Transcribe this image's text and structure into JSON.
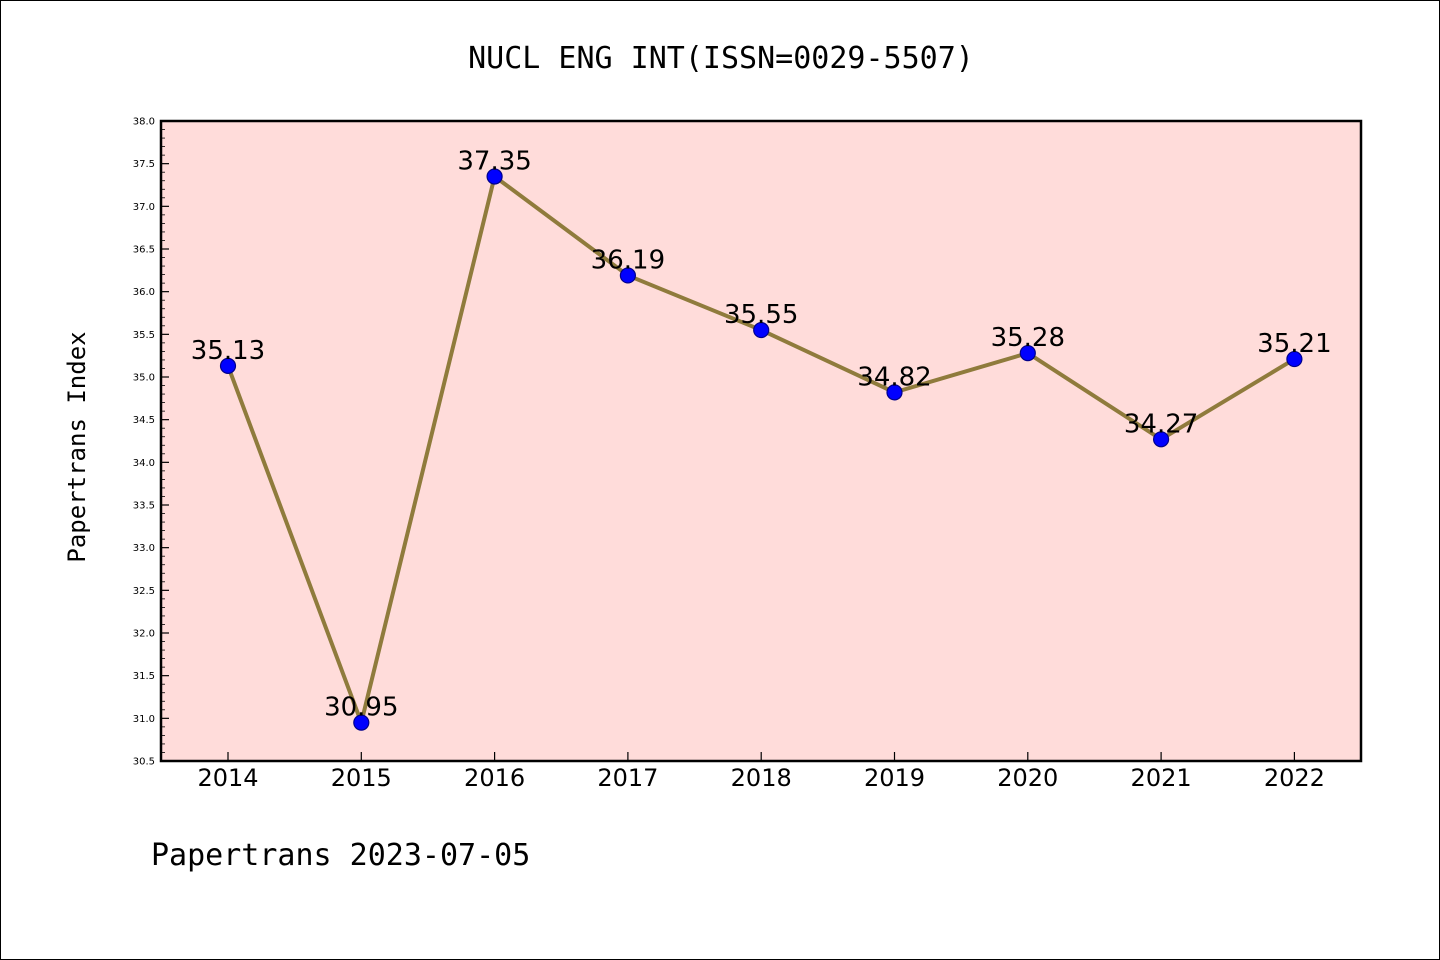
{
  "colors": {
    "plot_background": "#FFDCDA",
    "line": "#8F7B3C",
    "marker": "#0000FF",
    "marker_edge": "#00008B"
  },
  "footer": "Papertrans 2023-07-05",
  "chart_data": {
    "type": "line",
    "title": "NUCL ENG INT(ISSN=0029-5507)",
    "xlabel": "",
    "ylabel": "Papertrans Index",
    "categories": [
      "2014",
      "2015",
      "2016",
      "2017",
      "2018",
      "2019",
      "2020",
      "2021",
      "2022"
    ],
    "values": [
      35.13,
      30.95,
      37.35,
      36.19,
      35.55,
      34.82,
      35.28,
      34.27,
      35.21
    ],
    "data_labels": [
      "35.13",
      "30.95",
      "37.35",
      "36.19",
      "35.55",
      "34.82",
      "35.28",
      "34.27",
      "35.21"
    ],
    "ylim": [
      30.5,
      38.0
    ],
    "yticks": [
      "30.5",
      "31.0",
      "31.5",
      "32.0",
      "32.5",
      "33.0",
      "33.5",
      "34.0",
      "34.5",
      "35.0",
      "35.5",
      "36.0",
      "36.5",
      "37.0",
      "37.5",
      "38.0"
    ],
    "grid": false,
    "legend": "none"
  }
}
